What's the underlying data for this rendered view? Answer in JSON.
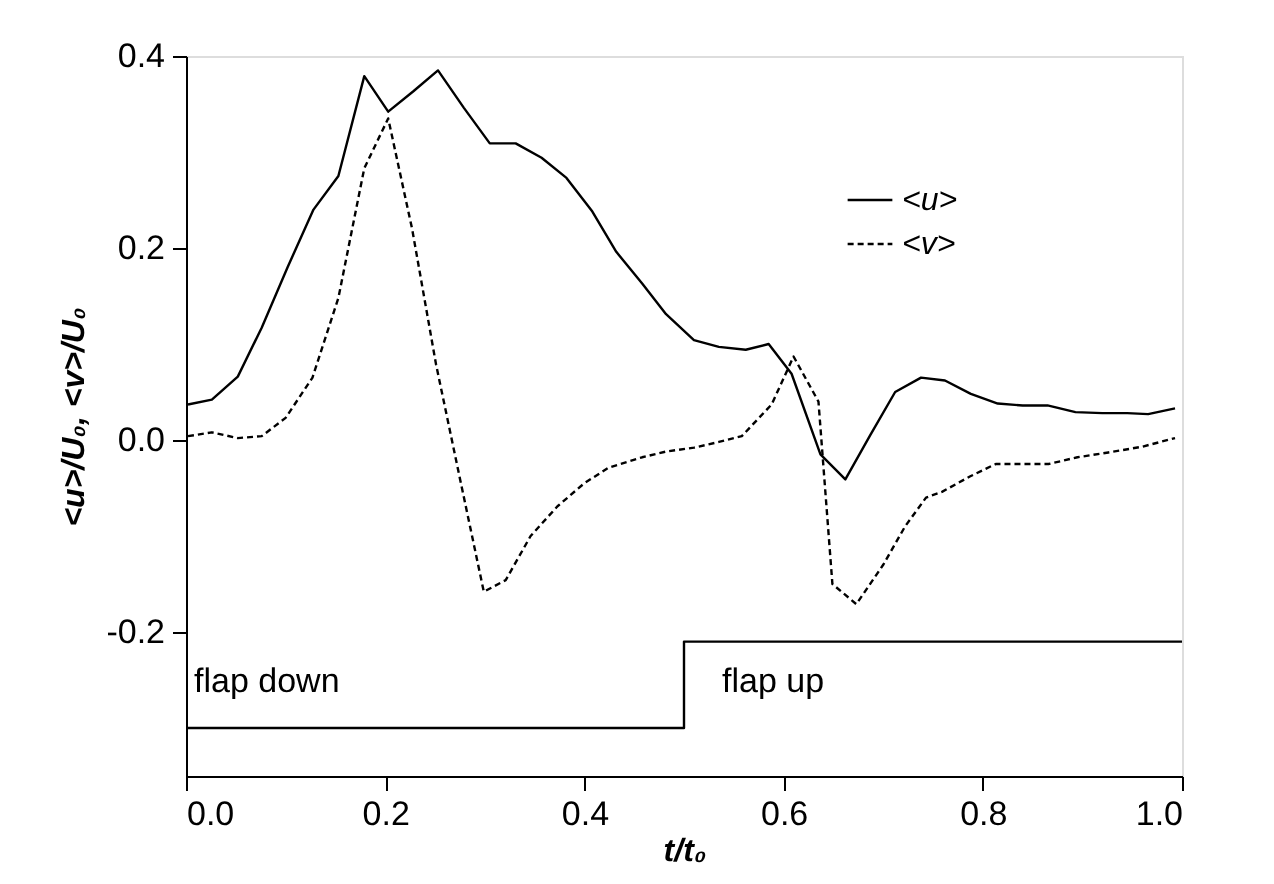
{
  "chart_data": {
    "type": "line",
    "xlabel": "t/t₀",
    "ylabel": "<u>/U₀, <v>/U₀",
    "xlim": [
      0,
      1
    ],
    "ylim": [
      -0.35,
      0.4
    ],
    "xticks": [
      {
        "value": 0,
        "label": "0.0"
      },
      {
        "value": 0.2,
        "label": "0.2"
      },
      {
        "value": 0.4,
        "label": "0.4"
      },
      {
        "value": 0.6,
        "label": "0.6"
      },
      {
        "value": 0.8,
        "label": "0.8"
      },
      {
        "value": 1,
        "label": "1.0"
      }
    ],
    "yticks": [
      {
        "value": -0.2,
        "label": "-0.2"
      },
      {
        "value": 0,
        "label": "0.0"
      },
      {
        "value": 0.2,
        "label": "0.2"
      },
      {
        "value": 0.4,
        "label": "0.4"
      }
    ],
    "grid": false,
    "legend": "top right",
    "marker": "none",
    "series": [
      {
        "name": "<u>",
        "color": "#000000",
        "line_style": "solid",
        "x": [
          0.002,
          0.026,
          0.052,
          0.076,
          0.102,
          0.128,
          0.153,
          0.179,
          0.203,
          0.228,
          0.253,
          0.279,
          0.305,
          0.331,
          0.357,
          0.382,
          0.408,
          0.432,
          0.458,
          0.482,
          0.51,
          0.535,
          0.562,
          0.585,
          0.608,
          0.637,
          0.662,
          0.687,
          0.712,
          0.738,
          0.762,
          0.788,
          0.815,
          0.84,
          0.865,
          0.893,
          0.92,
          0.945,
          0.966,
          0.993
        ],
        "values": [
          0.037,
          0.042,
          0.066,
          0.117,
          0.18,
          0.24,
          0.275,
          0.379,
          0.342,
          0.363,
          0.385,
          0.346,
          0.309,
          0.309,
          0.294,
          0.273,
          0.238,
          0.196,
          0.163,
          0.131,
          0.104,
          0.097,
          0.094,
          0.1,
          0.069,
          -0.015,
          -0.041,
          0.005,
          0.05,
          0.065,
          0.062,
          0.048,
          0.038,
          0.036,
          0.036,
          0.029,
          0.028,
          0.028,
          0.027,
          0.033
        ]
      },
      {
        "name": "<v>",
        "color": "#000000",
        "line_style": "dashed",
        "x": [
          0.002,
          0.026,
          0.052,
          0.076,
          0.1,
          0.127,
          0.153,
          0.179,
          0.203,
          0.227,
          0.251,
          0.275,
          0.299,
          0.321,
          0.346,
          0.373,
          0.4,
          0.424,
          0.458,
          0.482,
          0.51,
          0.535,
          0.558,
          0.588,
          0.61,
          0.635,
          0.649,
          0.673,
          0.7,
          0.722,
          0.743,
          0.759,
          0.787,
          0.813,
          0.84,
          0.866,
          0.895,
          0.926,
          0.96,
          0.993
        ],
        "values": [
          0.004,
          0.008,
          0.002,
          0.004,
          0.023,
          0.065,
          0.148,
          0.283,
          0.335,
          0.22,
          0.079,
          -0.04,
          -0.158,
          -0.146,
          -0.1,
          -0.069,
          -0.045,
          -0.029,
          -0.018,
          -0.012,
          -0.008,
          -0.002,
          0.004,
          0.037,
          0.087,
          0.04,
          -0.15,
          -0.171,
          -0.13,
          -0.09,
          -0.06,
          -0.054,
          -0.038,
          -0.025,
          -0.025,
          -0.025,
          -0.018,
          -0.013,
          -0.007,
          0.002
        ]
      },
      {
        "type": "step",
        "color": "#000000",
        "line_style": "solid",
        "x": [
          0,
          0.5,
          1
        ],
        "values": [
          -0.3,
          -0.21,
          -0.21
        ]
      }
    ],
    "annotations": [
      "flap down",
      "flap up"
    ]
  }
}
